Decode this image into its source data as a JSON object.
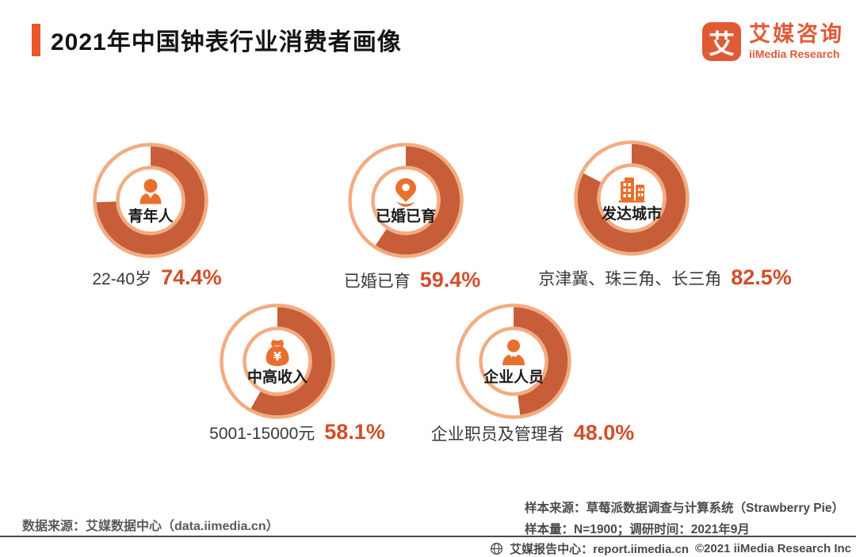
{
  "header": {
    "title": "2021年中国钟表行业消费者画像",
    "logo": {
      "mark": "艾",
      "name_cn": "艾媒咨询",
      "name_en": "iiMedia Research"
    }
  },
  "chart_data": {
    "type": "pie",
    "subtype": "donut-set",
    "title": "2021年中国钟表行业消费者画像",
    "unit": "%",
    "donuts": [
      {
        "id": "youth",
        "icon": "person-young-icon",
        "inner_label": "青年人",
        "category": "22-40岁",
        "value": 74.4,
        "value_label": "74.4%"
      },
      {
        "id": "married",
        "icon": "location-pin-icon",
        "inner_label": "已婚已育",
        "category": "已婚已育",
        "value": 59.4,
        "value_label": "59.4%"
      },
      {
        "id": "cities",
        "icon": "buildings-icon",
        "inner_label": "发达城市",
        "category": "京津冀、珠三角、长三角",
        "value": 82.5,
        "value_label": "82.5%"
      },
      {
        "id": "income",
        "icon": "money-bag-icon",
        "inner_label": "中高收入",
        "category": "5001-15000元",
        "value": 58.1,
        "value_label": "58.1%"
      },
      {
        "id": "enterprise",
        "icon": "businessman-icon",
        "inner_label": "企业人员",
        "category": "企业职员及管理者",
        "value": 48.0,
        "value_label": "48.0%"
      }
    ],
    "colors": {
      "arc": "#C75E39",
      "ring": "#F2AC81",
      "icon": "#E8702E",
      "value_text": "#D14E2A",
      "accent": "#E9572B"
    }
  },
  "footer": {
    "data_source": "数据来源：艾媒数据中心（data.iimedia.cn）",
    "sample_source": "样本来源：草莓派数据调查与计算系统（Strawberry Pie）",
    "sample_size": "样本量：N=1900；调研时间：2021年9月",
    "report_center": "艾媒报告中心：report.iimedia.cn",
    "copyright": "©2021  iiMedia Research Inc"
  }
}
